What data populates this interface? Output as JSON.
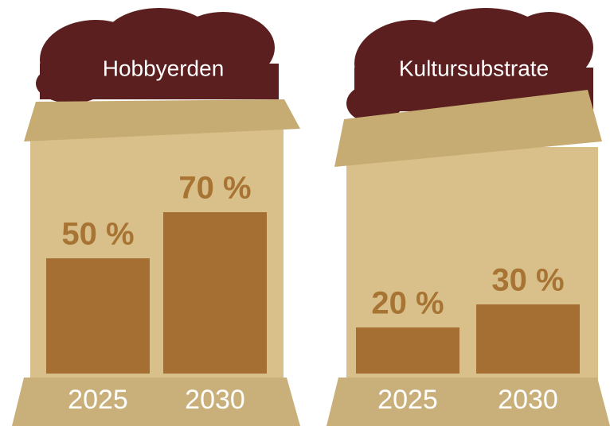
{
  "chart_data": [
    {
      "type": "bar",
      "title": "Hobbyerden",
      "categories": [
        "2025",
        "2030"
      ],
      "values": [
        50,
        70
      ],
      "value_labels": [
        "50 %",
        "70 %"
      ],
      "color": "#a56f33"
    },
    {
      "type": "bar",
      "title": "Kultursubstrate",
      "categories": [
        "2025",
        "2030"
      ],
      "values": [
        20,
        30
      ],
      "value_labels": [
        "20 %",
        "30 %"
      ],
      "color": "#a56f33"
    }
  ]
}
